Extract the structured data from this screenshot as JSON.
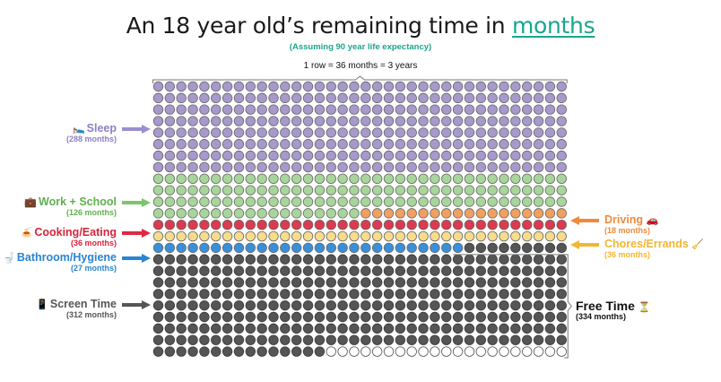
{
  "title": {
    "prefix": "An 18 year old’s remaining time in ",
    "highlight": "months"
  },
  "subtitle": "(Assuming 90 year life expectancy)",
  "row_note": "1 row = 36 months = 3 years",
  "chart_data": {
    "type": "waffle",
    "unit": "months",
    "columns": 36,
    "rows": 24,
    "total": 864,
    "categories": [
      {
        "name": "Sleep",
        "value": 288,
        "count_label": "(288 months)",
        "color": "#a899cc"
      },
      {
        "name": "Work + School",
        "value": 126,
        "count_label": "(126 months)",
        "color": "#a8d69a"
      },
      {
        "name": "Driving",
        "value": 18,
        "count_label": "(18 months)",
        "color": "#f0a060"
      },
      {
        "name": "Cooking/Eating",
        "value": 36,
        "count_label": "(36 months)",
        "color": "#dc3a50"
      },
      {
        "name": "Chores/Errands",
        "value": 36,
        "count_label": "(36 months)",
        "color": "#f7dc8c"
      },
      {
        "name": "Bathroom/Hygiene",
        "value": 27,
        "count_label": "(27 months)",
        "color": "#3a90d8"
      },
      {
        "name": "Screen Time",
        "value": 312,
        "count_label": "(312 months)",
        "color": "#555555"
      },
      {
        "name": "Free Time",
        "value": 21,
        "count_label": "",
        "color": "#ffffff"
      }
    ],
    "free_time": {
      "name": "Free Time",
      "count_label": "(334 months)",
      "value": 334
    }
  },
  "labels": {
    "sleep": {
      "name": "Sleep",
      "count": "(288 months)",
      "color": "#8e7fc4",
      "icon": "🛌"
    },
    "work": {
      "name": "Work + School",
      "count": "(126 months)",
      "color": "#5fb04c",
      "icon": "💼"
    },
    "cooking": {
      "name": "Cooking/Eating",
      "count": "(36 months)",
      "color": "#d8233c",
      "icon": "🍝"
    },
    "bathroom": {
      "name": "Bathroom/Hygiene",
      "count": "(27 months)",
      "color": "#2a84d2",
      "icon": "🚽"
    },
    "screen": {
      "name": "Screen Time",
      "count": "(312 months)",
      "color": "#555555",
      "icon": "📱"
    },
    "driving": {
      "name": "Driving",
      "count": "(18 months)",
      "color": "#ef8a3c",
      "icon": "🚗"
    },
    "chores": {
      "name": "Chores/Errands",
      "count": "(36 months)",
      "color": "#f2b632",
      "icon": "🧹"
    },
    "free": {
      "name": "Free Time",
      "count": "(334 months)",
      "color": "#111111",
      "icon": "⏳"
    }
  }
}
